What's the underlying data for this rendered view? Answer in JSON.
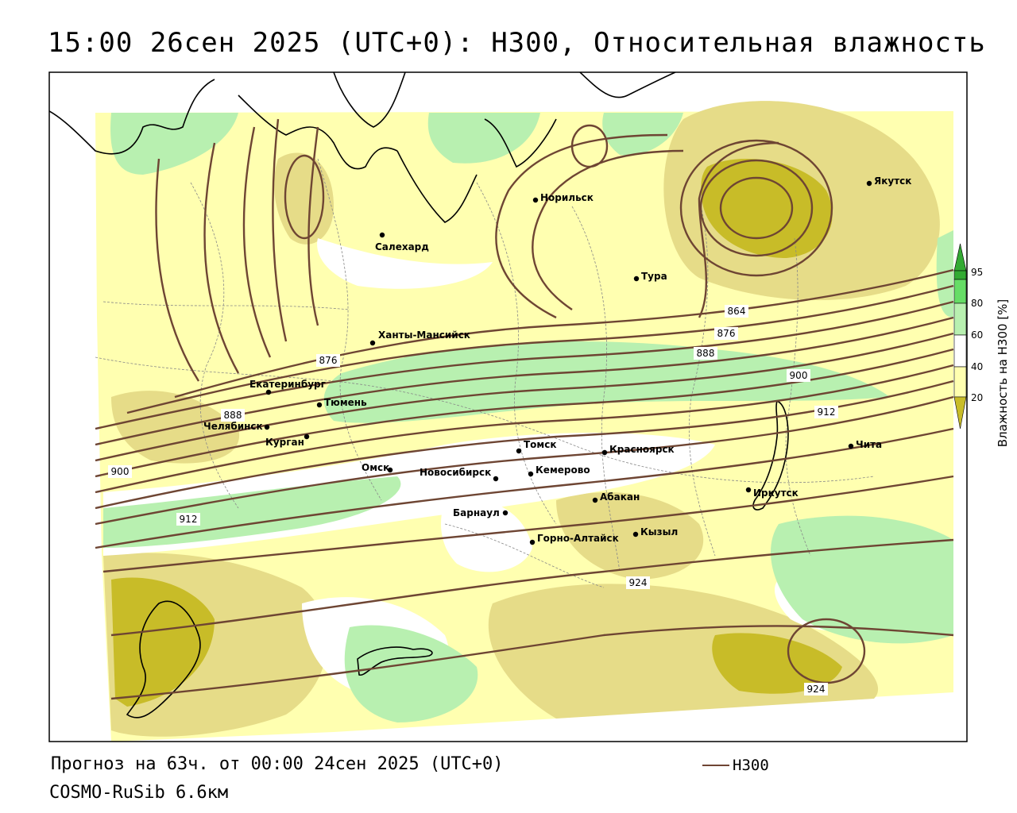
{
  "title": "15:00 26сен 2025 (UTC+0): H300, Относительная влажность",
  "forecast_line": "Прогноз на 63ч. от 00:00 24сен 2025 (UTC+0)",
  "model_line": "COSMO-RuSib 6.6км",
  "legend": {
    "line_label": "H300",
    "line_color": "#6e4533"
  },
  "colorbar": {
    "title": "Влажность на H300 [%]",
    "ticks": [
      "95",
      "80",
      "60",
      "40",
      "20"
    ],
    "colors": {
      "c95": "#33aa33",
      "c80": "#66dd66",
      "c60": "#b8f0b0",
      "c40": "#ffffff",
      "c20": "#ffffb0",
      "c10": "#e6dc88",
      "c0": "#c8bc28"
    }
  },
  "contour_labels": [
    "876",
    "864",
    "876",
    "888",
    "900",
    "912",
    "900",
    "912",
    "924",
    "924",
    "888"
  ],
  "cities": [
    "Норильск",
    "Якутск",
    "Салехард",
    "Тура",
    "Ханты-Мансийск",
    "Екатеринбург",
    "Тюмень",
    "Челябинск",
    "Курган",
    "Омск",
    "Новосибирск",
    "Томск",
    "Кемерово",
    "Красноярск",
    "Барнаул",
    "Абакан",
    "Горно-Алтайск",
    "Кызыл",
    "Иркутск",
    "Чита"
  ]
}
